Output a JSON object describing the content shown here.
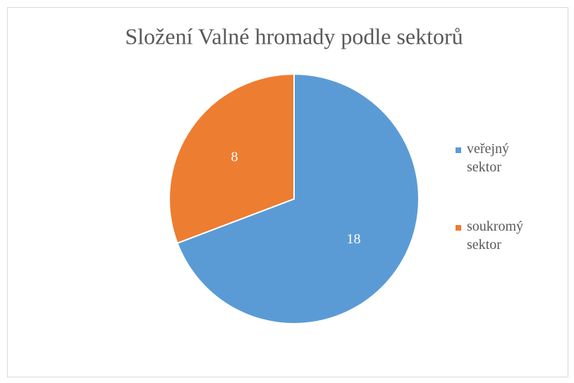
{
  "chart_data": {
    "type": "pie",
    "title": "Složení Valné hromady podle sektorů",
    "categories": [
      "veřejný sektor",
      "soukromý sektor"
    ],
    "values": [
      18,
      8
    ],
    "colors": [
      "#5b9bd5",
      "#ed7d31"
    ],
    "legend": "right"
  }
}
